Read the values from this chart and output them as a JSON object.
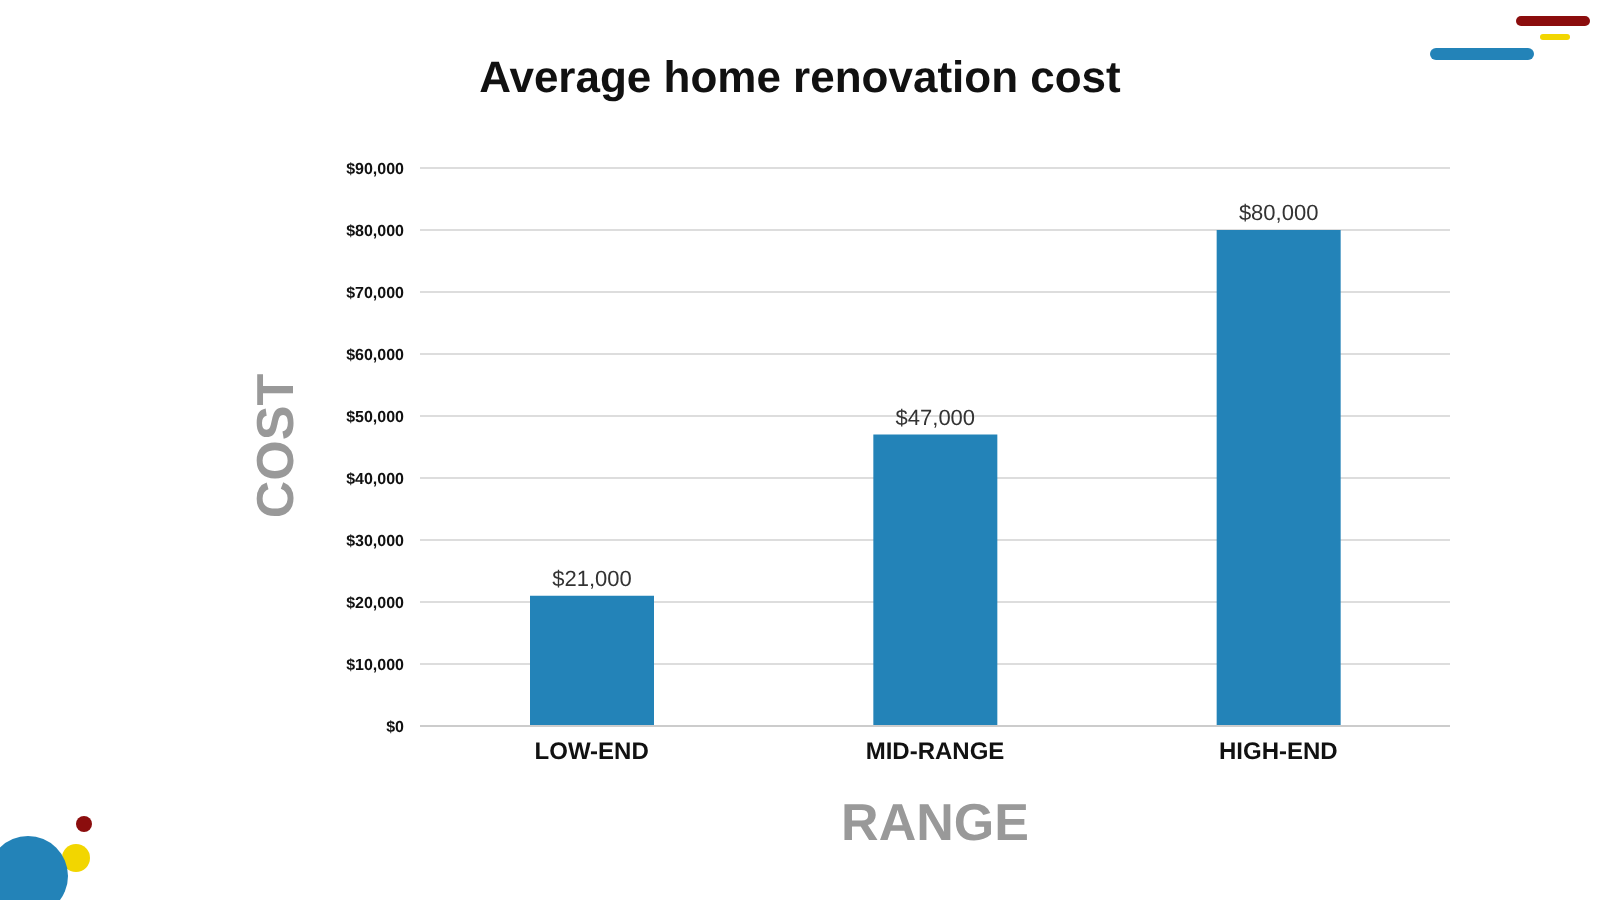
{
  "chart_data": {
    "type": "bar",
    "title": "Average home renovation cost",
    "xlabel": "RANGE",
    "ylabel": "COST",
    "categories": [
      "LOW-END",
      "MID-RANGE",
      "HIGH-END"
    ],
    "values": [
      21000,
      47000,
      80000
    ],
    "color": "#2383b8",
    "value_labels": [
      "$21,000",
      "$47,000",
      "$80,000"
    ],
    "ylim": [
      0,
      90000
    ],
    "yticks": [
      {
        "value": 0,
        "label": "$0"
      },
      {
        "value": 10000,
        "label": "$10,000"
      },
      {
        "value": 20000,
        "label": "$20,000"
      },
      {
        "value": 30000,
        "label": "$30,000"
      },
      {
        "value": 40000,
        "label": "$40,000"
      },
      {
        "value": 50000,
        "label": "$50,000"
      },
      {
        "value": 60000,
        "label": "$60,000"
      },
      {
        "value": 70000,
        "label": "$70,000"
      },
      {
        "value": 80000,
        "label": "$80,000"
      },
      {
        "value": 90000,
        "label": "$90,000"
      }
    ],
    "grid": "y",
    "legend": false
  }
}
